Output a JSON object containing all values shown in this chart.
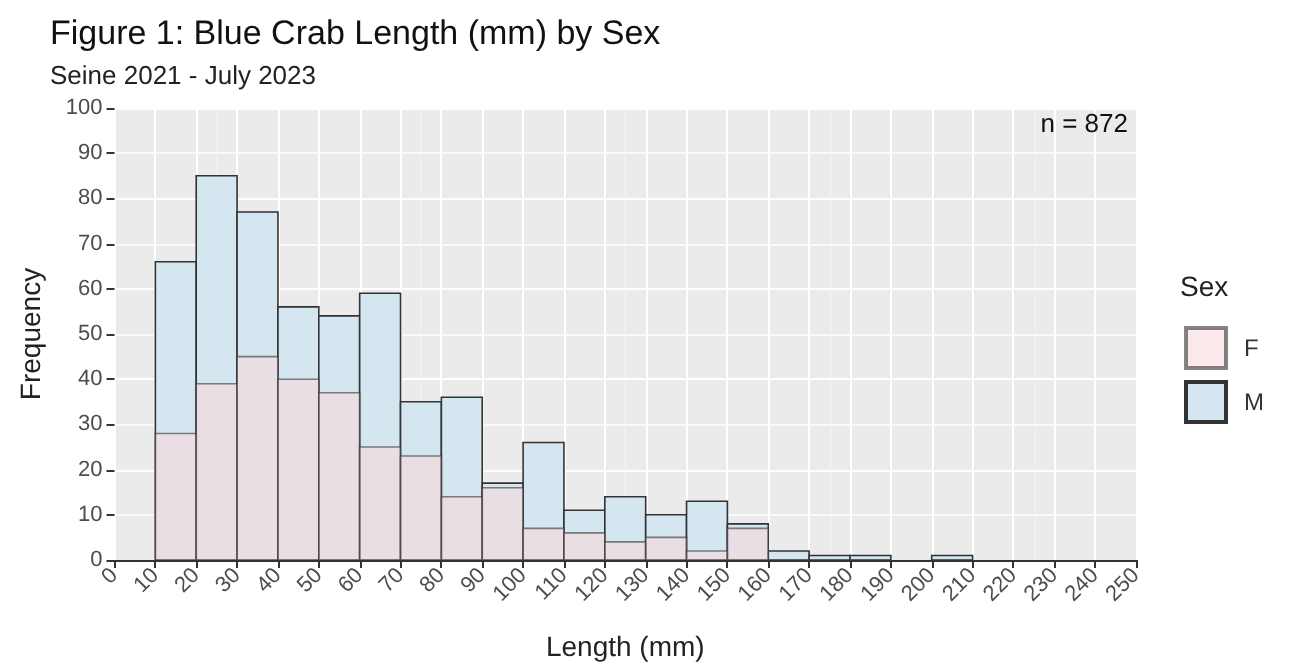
{
  "chart_data": {
    "type": "histogram",
    "title": "Figure 1: Blue Crab Length (mm) by Sex",
    "subtitle": "Seine 2021 - July 2023",
    "xlabel": "Length (mm)",
    "ylabel": "Frequency",
    "legend_title": "Sex",
    "annotations": [
      "n = 872"
    ],
    "bins": [
      10,
      20,
      30,
      40,
      50,
      60,
      70,
      80,
      90,
      100,
      110,
      120,
      130,
      140,
      150,
      160,
      170,
      180,
      190,
      200,
      210
    ],
    "series": [
      {
        "name": "M",
        "color": "#d4e6ef",
        "values": [
          66,
          85,
          77,
          56,
          54,
          59,
          35,
          36,
          17,
          26,
          11,
          14,
          10,
          13,
          8,
          2,
          1,
          1,
          0,
          1
        ]
      },
      {
        "name": "F",
        "color": "#f6d8dc",
        "values": [
          28,
          39,
          45,
          40,
          37,
          25,
          23,
          14,
          16,
          7,
          6,
          4,
          5,
          2,
          7,
          0,
          0,
          0,
          0,
          0
        ]
      }
    ],
    "xlim": [
      0,
      250
    ],
    "xticks": [
      0,
      10,
      20,
      30,
      40,
      50,
      60,
      70,
      80,
      90,
      100,
      110,
      120,
      130,
      140,
      150,
      160,
      170,
      180,
      190,
      200,
      210,
      220,
      230,
      240,
      250
    ],
    "ylim": [
      0,
      100
    ],
    "yticks": [
      0,
      10,
      20,
      30,
      40,
      50,
      60,
      70,
      80,
      90,
      100
    ],
    "grid": true,
    "legend": "right"
  }
}
